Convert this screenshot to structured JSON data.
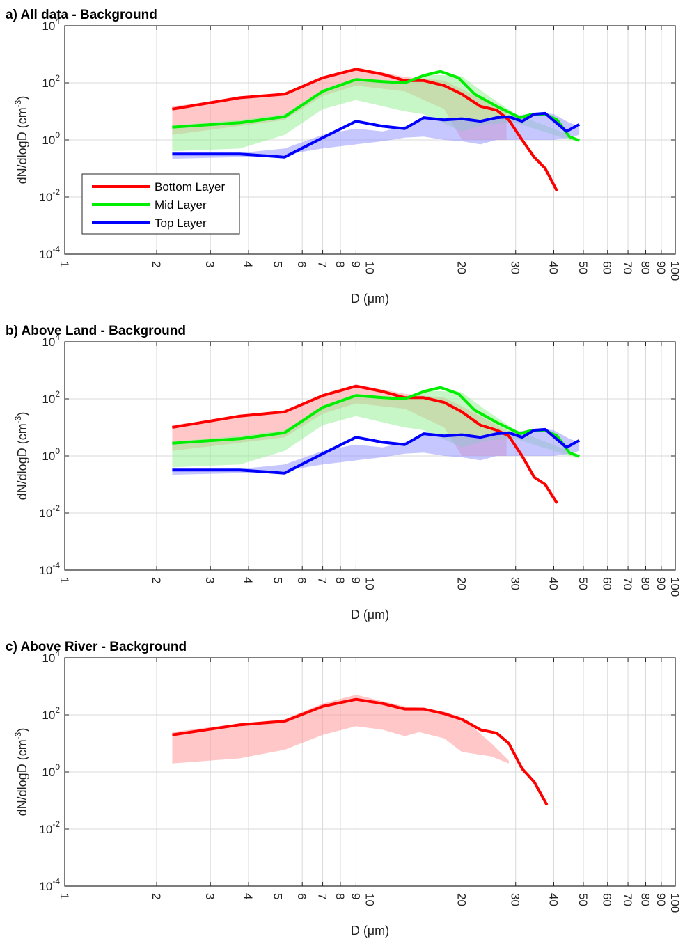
{
  "colors": {
    "Bottom Layer": "#ff0000",
    "Mid Layer": "#00ee00",
    "Top Layer": "#0000ff",
    "Bottom Layer band": "#ff9999",
    "Mid Layer band": "#99ee99",
    "Top Layer band": "#9999ff",
    "grid": "#d9d9d9",
    "axes": "#262626"
  },
  "chart_data": [
    {
      "type": "line",
      "title": "a) All data - Background",
      "xlabel": "D (μm)",
      "ylabel": "dN/dlogD (cm-3)",
      "xscale": "log",
      "yscale": "log",
      "xlim": [
        1,
        100
      ],
      "ylim": [
        0.0001,
        10000
      ],
      "xticks": [
        1,
        2,
        3,
        4,
        5,
        6,
        7,
        8,
        9,
        10,
        20,
        30,
        40,
        50,
        60,
        70,
        80,
        90,
        100
      ],
      "yticks": [
        -4,
        -2,
        0,
        2,
        4
      ],
      "grid": true,
      "legend": {
        "position": "left, middle",
        "entries": [
          "Bottom Layer",
          "Mid Layer",
          "Top Layer"
        ]
      },
      "series": [
        {
          "name": "Bottom Layer",
          "x": [
            2.25,
            3.75,
            5.25,
            7.0,
            9.0,
            11.0,
            13.0,
            15.0,
            17.5,
            20.0,
            23.0,
            26.0,
            28.5,
            31.5,
            34.5,
            37.5,
            41.0
          ],
          "y": [
            12.0,
            30.0,
            40.0,
            150.0,
            300.0,
            200.0,
            120.0,
            120.0,
            80.0,
            40.0,
            15.0,
            11.0,
            5.0,
            1.0,
            0.25,
            0.1,
            0.016
          ],
          "band": {
            "x": [
              2.25,
              5.25,
              7.0,
              9.0,
              13.0,
              17.5,
              20.0,
              28.0
            ],
            "low": [
              1.5,
              5.0,
              35.0,
              80.0,
              50.0,
              12.0,
              1.0,
              1.0
            ],
            "high": [
              15.0,
              45.0,
              160.0,
              350.0,
              160.0,
              120.0,
              60.0,
              10.0
            ]
          }
        },
        {
          "name": "Mid Layer",
          "x": [
            2.25,
            3.75,
            5.25,
            7.0,
            9.0,
            11.0,
            13.0,
            15.0,
            17.0,
            19.5,
            22.0,
            26.0,
            31.0,
            34.0,
            37.5,
            41.0,
            45.0,
            48.5
          ],
          "y": [
            2.8,
            4.0,
            6.5,
            50.0,
            130.0,
            110.0,
            100.0,
            180.0,
            250.0,
            150.0,
            40.0,
            15.0,
            6.0,
            8.0,
            8.0,
            5.0,
            1.3,
            0.95
          ],
          "band": {
            "x": [
              2.25,
              3.75,
              5.25,
              7.0,
              9.0,
              13.0,
              15.0,
              20.0,
              24.0,
              30.0,
              45.0,
              48.5
            ],
            "low": [
              0.4,
              0.5,
              1.5,
              12.0,
              25.0,
              10.0,
              8.0,
              2.0,
              3.5,
              4.0,
              1.0,
              0.9
            ],
            "high": [
              3.2,
              5.0,
              8.0,
              60.0,
              150.0,
              110.0,
              200.0,
              170.0,
              40.0,
              8.0,
              1.5,
              1.0
            ]
          }
        },
        {
          "name": "Top Layer",
          "x": [
            2.25,
            3.75,
            5.25,
            7.0,
            9.0,
            11.0,
            13.0,
            15.0,
            17.5,
            20.0,
            23.0,
            26.0,
            28.5,
            31.5,
            34.5,
            37.5,
            44.0,
            48.5
          ],
          "y": [
            0.32,
            0.32,
            0.25,
            1.2,
            4.5,
            3.0,
            2.5,
            6.0,
            5.0,
            5.5,
            4.5,
            6.0,
            6.5,
            4.5,
            8.0,
            8.5,
            2.0,
            3.5
          ],
          "band": {
            "x": [
              2.25,
              3.75,
              5.25,
              7.0,
              9.0,
              11.0,
              13.0,
              15.0,
              17.5,
              20.0,
              23.0,
              26.0,
              30.0,
              35.0,
              40.0,
              45.0,
              48.5
            ],
            "low": [
              0.22,
              0.25,
              0.3,
              0.5,
              0.7,
              0.9,
              1.2,
              1.3,
              1.0,
              0.9,
              0.7,
              1.0,
              1.0,
              1.0,
              1.0,
              1.2,
              1.5
            ],
            "high": [
              0.3,
              0.35,
              0.5,
              1.5,
              2.5,
              2.0,
              3.0,
              6.0,
              5.5,
              6.0,
              5.0,
              6.0,
              7.0,
              9.0,
              8.0,
              4.0,
              3.0
            ]
          }
        }
      ]
    },
    {
      "type": "line",
      "title": "b) Above Land - Background",
      "xlabel": "D (μm)",
      "ylabel": "dN/dlogD (cm-3)",
      "xscale": "log",
      "yscale": "log",
      "xlim": [
        1,
        100
      ],
      "ylim": [
        0.0001,
        10000
      ],
      "xticks": [
        1,
        2,
        3,
        4,
        5,
        6,
        7,
        8,
        9,
        10,
        20,
        30,
        40,
        50,
        60,
        70,
        80,
        90,
        100
      ],
      "yticks": [
        -4,
        -2,
        0,
        2,
        4
      ],
      "grid": true,
      "series": [
        {
          "name": "Bottom Layer",
          "x": [
            2.25,
            3.75,
            5.25,
            7.0,
            9.0,
            11.0,
            13.0,
            15.0,
            17.5,
            20.0,
            23.0,
            26.0,
            28.5,
            31.5,
            34.5,
            37.5,
            41.0
          ],
          "y": [
            10.0,
            25.0,
            35.0,
            130.0,
            280.0,
            180.0,
            110.0,
            110.0,
            75.0,
            35.0,
            12.0,
            8.0,
            5.0,
            1.0,
            0.18,
            0.1,
            0.022
          ],
          "band": {
            "x": [
              2.25,
              5.25,
              7.0,
              9.0,
              13.0,
              17.5,
              20.0,
              28.0
            ],
            "low": [
              1.5,
              4.5,
              30.0,
              70.0,
              45.0,
              10.0,
              1.0,
              1.0
            ],
            "high": [
              12.0,
              40.0,
              140.0,
              320.0,
              150.0,
              110.0,
              55.0,
              8.0
            ]
          }
        },
        {
          "name": "Mid Layer",
          "x": [
            2.25,
            3.75,
            5.25,
            7.0,
            9.0,
            11.0,
            13.0,
            15.0,
            17.0,
            19.5,
            22.0,
            26.0,
            31.0,
            34.0,
            37.5,
            41.0,
            45.0,
            48.5
          ],
          "y": [
            2.8,
            4.0,
            6.5,
            50.0,
            130.0,
            110.0,
            100.0,
            180.0,
            250.0,
            150.0,
            40.0,
            15.0,
            6.0,
            8.0,
            8.0,
            5.0,
            1.3,
            0.95
          ],
          "band": {
            "x": [
              2.25,
              3.75,
              5.25,
              7.0,
              9.0,
              13.0,
              15.0,
              20.0,
              24.0,
              30.0,
              45.0,
              48.5
            ],
            "low": [
              0.4,
              0.5,
              1.5,
              12.0,
              25.0,
              10.0,
              8.0,
              2.0,
              3.5,
              4.0,
              1.0,
              0.9
            ],
            "high": [
              3.2,
              5.0,
              8.0,
              60.0,
              150.0,
              110.0,
              200.0,
              170.0,
              40.0,
              8.0,
              1.5,
              1.0
            ]
          }
        },
        {
          "name": "Top Layer",
          "x": [
            2.25,
            3.75,
            5.25,
            7.0,
            9.0,
            11.0,
            13.0,
            15.0,
            17.5,
            20.0,
            23.0,
            26.0,
            28.5,
            31.5,
            34.5,
            37.5,
            44.0,
            48.5
          ],
          "y": [
            0.32,
            0.32,
            0.25,
            1.2,
            4.5,
            3.0,
            2.5,
            6.0,
            5.0,
            5.5,
            4.5,
            6.0,
            6.5,
            4.5,
            8.0,
            8.5,
            2.0,
            3.5
          ],
          "band": {
            "x": [
              2.25,
              3.75,
              5.25,
              7.0,
              9.0,
              11.0,
              13.0,
              15.0,
              17.5,
              20.0,
              23.0,
              26.0,
              30.0,
              35.0,
              40.0,
              45.0,
              48.5
            ],
            "low": [
              0.22,
              0.25,
              0.3,
              0.5,
              0.7,
              0.9,
              1.2,
              1.3,
              1.0,
              0.9,
              0.7,
              1.0,
              1.0,
              1.0,
              1.0,
              1.2,
              1.5
            ],
            "high": [
              0.3,
              0.35,
              0.5,
              1.5,
              2.5,
              2.0,
              3.0,
              6.0,
              5.5,
              6.0,
              5.0,
              6.0,
              7.0,
              9.0,
              8.0,
              4.0,
              3.0
            ]
          }
        }
      ]
    },
    {
      "type": "line",
      "title": "c) Above River - Background",
      "xlabel": "D (μm)",
      "ylabel": "dN/dlogD (cm-3)",
      "xscale": "log",
      "yscale": "log",
      "xlim": [
        1,
        100
      ],
      "ylim": [
        0.0001,
        10000
      ],
      "xticks": [
        1,
        2,
        3,
        4,
        5,
        6,
        7,
        8,
        9,
        10,
        20,
        30,
        40,
        50,
        60,
        70,
        80,
        90,
        100
      ],
      "yticks": [
        -4,
        -2,
        0,
        2,
        4
      ],
      "grid": true,
      "series": [
        {
          "name": "Bottom Layer",
          "x": [
            2.25,
            3.75,
            5.25,
            7.0,
            9.0,
            11.0,
            13.0,
            15.0,
            17.5,
            20.0,
            23.0,
            26.0,
            28.5,
            31.5,
            34.5,
            38.0
          ],
          "y": [
            20.0,
            45.0,
            60.0,
            200.0,
            350.0,
            250.0,
            160.0,
            160.0,
            110.0,
            70.0,
            30.0,
            23.0,
            10.0,
            1.3,
            0.45,
            0.07
          ],
          "band": {
            "x": [
              2.25,
              3.75,
              5.25,
              7.0,
              9.0,
              11.0,
              13.0,
              14.5,
              17.5,
              20.0,
              25.0,
              28.5
            ],
            "low": [
              2.0,
              3.0,
              6.0,
              20.0,
              40.0,
              30.0,
              18.0,
              25.0,
              15.0,
              5.0,
              3.5,
              2.0
            ],
            "high": [
              25.0,
              50.0,
              70.0,
              250.0,
              500.0,
              300.0,
              200.0,
              180.0,
              130.0,
              80.0,
              10.0,
              2.5
            ]
          }
        }
      ]
    }
  ]
}
